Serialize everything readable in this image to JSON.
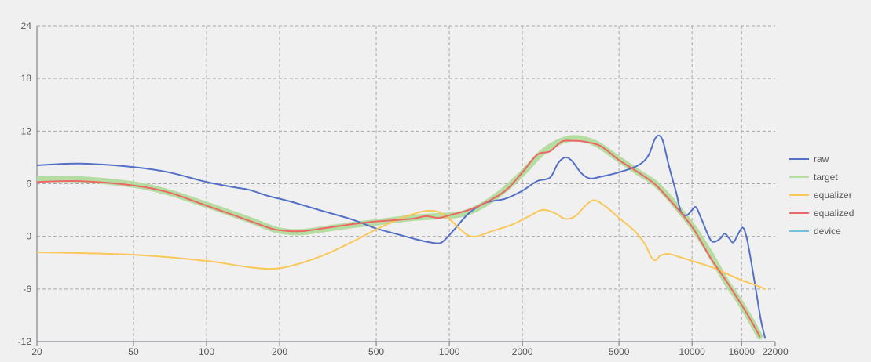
{
  "chart_data": {
    "type": "line",
    "title": "",
    "xlabel": "",
    "ylabel": "",
    "x_scale": "log",
    "xlim": [
      20,
      22000
    ],
    "ylim": [
      -12,
      24
    ],
    "x_ticks": [
      20,
      50,
      100,
      200,
      500,
      1000,
      2000,
      5000,
      10000,
      16000,
      22000
    ],
    "y_ticks": [
      24,
      18,
      12,
      6,
      0,
      -6,
      -12
    ],
    "grid": true,
    "legend_position": "right",
    "series": [
      {
        "name": "raw",
        "color": "#5470c6",
        "width": 2,
        "points": [
          [
            20,
            8.1
          ],
          [
            30,
            8.3
          ],
          [
            50,
            7.9
          ],
          [
            70,
            7.3
          ],
          [
            100,
            6.2
          ],
          [
            130,
            5.6
          ],
          [
            150,
            5.3
          ],
          [
            180,
            4.6
          ],
          [
            220,
            4.0
          ],
          [
            300,
            2.9
          ],
          [
            400,
            1.9
          ],
          [
            500,
            0.9
          ],
          [
            600,
            0.3
          ],
          [
            700,
            -0.2
          ],
          [
            800,
            -0.6
          ],
          [
            900,
            -0.8
          ],
          [
            950,
            -0.5
          ],
          [
            1050,
            0.8
          ],
          [
            1200,
            2.6
          ],
          [
            1400,
            3.8
          ],
          [
            1700,
            4.3
          ],
          [
            2000,
            5.2
          ],
          [
            2300,
            6.3
          ],
          [
            2600,
            6.7
          ],
          [
            2800,
            8.3
          ],
          [
            3000,
            9.0
          ],
          [
            3200,
            8.6
          ],
          [
            3500,
            7.2
          ],
          [
            3800,
            6.6
          ],
          [
            4200,
            6.8
          ],
          [
            5000,
            7.3
          ],
          [
            6000,
            8.1
          ],
          [
            6600,
            9.2
          ],
          [
            7000,
            11.0
          ],
          [
            7300,
            11.5
          ],
          [
            7600,
            10.8
          ],
          [
            8000,
            8.2
          ],
          [
            8600,
            5.0
          ],
          [
            9000,
            2.8
          ],
          [
            9500,
            2.4
          ],
          [
            10000,
            3.0
          ],
          [
            10400,
            3.3
          ],
          [
            11000,
            1.8
          ],
          [
            12000,
            -0.5
          ],
          [
            13000,
            -0.3
          ],
          [
            13600,
            0.3
          ],
          [
            14200,
            -0.2
          ],
          [
            14800,
            -0.7
          ],
          [
            15500,
            0.3
          ],
          [
            16200,
            1.0
          ],
          [
            16800,
            -0.2
          ],
          [
            17500,
            -2.8
          ],
          [
            18300,
            -6.0
          ],
          [
            19200,
            -9.5
          ],
          [
            20000,
            -11.6
          ]
        ]
      },
      {
        "name": "target",
        "color": "#b5dda2",
        "width": 8,
        "points": [
          [
            20,
            6.5
          ],
          [
            30,
            6.5
          ],
          [
            50,
            5.9
          ],
          [
            70,
            5.0
          ],
          [
            100,
            3.6
          ],
          [
            130,
            2.5
          ],
          [
            160,
            1.6
          ],
          [
            190,
            0.8
          ],
          [
            220,
            0.5
          ],
          [
            250,
            0.5
          ],
          [
            300,
            0.8
          ],
          [
            400,
            1.3
          ],
          [
            500,
            1.6
          ],
          [
            700,
            2.1
          ],
          [
            900,
            2.3
          ],
          [
            1100,
            2.5
          ],
          [
            1300,
            3.2
          ],
          [
            1600,
            4.8
          ],
          [
            2000,
            7.2
          ],
          [
            2400,
            9.5
          ],
          [
            2800,
            10.7
          ],
          [
            3300,
            11.2
          ],
          [
            4000,
            10.6
          ],
          [
            5000,
            8.8
          ],
          [
            6000,
            7.3
          ],
          [
            7000,
            6.1
          ],
          [
            8000,
            4.5
          ],
          [
            9000,
            2.8
          ],
          [
            10000,
            1.2
          ],
          [
            11000,
            -0.5
          ],
          [
            12000,
            -2.2
          ],
          [
            13000,
            -3.9
          ],
          [
            14000,
            -5.4
          ],
          [
            15000,
            -6.6
          ],
          [
            16000,
            -7.8
          ],
          [
            17000,
            -9.0
          ],
          [
            18000,
            -10.2
          ],
          [
            19000,
            -11.4
          ]
        ]
      },
      {
        "name": "equalizer",
        "color": "#fac858",
        "width": 2,
        "points": [
          [
            20,
            -1.8
          ],
          [
            50,
            -2.1
          ],
          [
            100,
            -2.8
          ],
          [
            140,
            -3.4
          ],
          [
            180,
            -3.7
          ],
          [
            220,
            -3.4
          ],
          [
            300,
            -2.2
          ],
          [
            400,
            -0.6
          ],
          [
            500,
            0.8
          ],
          [
            600,
            1.8
          ],
          [
            700,
            2.5
          ],
          [
            800,
            2.9
          ],
          [
            900,
            2.8
          ],
          [
            1000,
            2.0
          ],
          [
            1100,
            0.9
          ],
          [
            1200,
            0.1
          ],
          [
            1300,
            0.0
          ],
          [
            1500,
            0.6
          ],
          [
            1800,
            1.3
          ],
          [
            2100,
            2.2
          ],
          [
            2400,
            3.0
          ],
          [
            2700,
            2.7
          ],
          [
            3000,
            2.0
          ],
          [
            3300,
            2.3
          ],
          [
            3700,
            3.7
          ],
          [
            4000,
            4.1
          ],
          [
            4500,
            3.2
          ],
          [
            5000,
            2.1
          ],
          [
            5800,
            0.6
          ],
          [
            6400,
            -0.9
          ],
          [
            6800,
            -2.4
          ],
          [
            7100,
            -2.7
          ],
          [
            7400,
            -2.2
          ],
          [
            8000,
            -2.0
          ],
          [
            9000,
            -2.4
          ],
          [
            10000,
            -2.8
          ],
          [
            12000,
            -3.5
          ],
          [
            14000,
            -4.3
          ],
          [
            16000,
            -5.0
          ],
          [
            18000,
            -5.5
          ],
          [
            20000,
            -6.0
          ]
        ]
      },
      {
        "name": "equalized",
        "color": "#ee6666",
        "width": 2,
        "points": [
          [
            20,
            6.2
          ],
          [
            30,
            6.3
          ],
          [
            50,
            5.8
          ],
          [
            70,
            5.0
          ],
          [
            100,
            3.5
          ],
          [
            130,
            2.4
          ],
          [
            160,
            1.5
          ],
          [
            190,
            0.8
          ],
          [
            220,
            0.6
          ],
          [
            250,
            0.6
          ],
          [
            300,
            0.9
          ],
          [
            400,
            1.4
          ],
          [
            500,
            1.7
          ],
          [
            700,
            2.0
          ],
          [
            800,
            2.3
          ],
          [
            900,
            2.1
          ],
          [
            1000,
            2.4
          ],
          [
            1200,
            3.0
          ],
          [
            1400,
            3.8
          ],
          [
            1700,
            5.2
          ],
          [
            2000,
            7.3
          ],
          [
            2300,
            9.3
          ],
          [
            2600,
            9.7
          ],
          [
            2900,
            10.8
          ],
          [
            3200,
            10.9
          ],
          [
            3600,
            10.8
          ],
          [
            4200,
            10.3
          ],
          [
            5000,
            8.7
          ],
          [
            6000,
            7.3
          ],
          [
            7000,
            6.0
          ],
          [
            8000,
            4.3
          ],
          [
            9000,
            2.7
          ],
          [
            10000,
            1.1
          ],
          [
            11000,
            -0.8
          ],
          [
            12000,
            -2.6
          ],
          [
            13000,
            -4.0
          ],
          [
            14000,
            -5.3
          ],
          [
            15000,
            -6.6
          ],
          [
            16000,
            -7.8
          ],
          [
            17000,
            -9.0
          ],
          [
            18000,
            -10.2
          ],
          [
            19000,
            -11.4
          ]
        ]
      },
      {
        "name": "device",
        "color": "#73c0de",
        "width": 2,
        "points": []
      }
    ]
  }
}
